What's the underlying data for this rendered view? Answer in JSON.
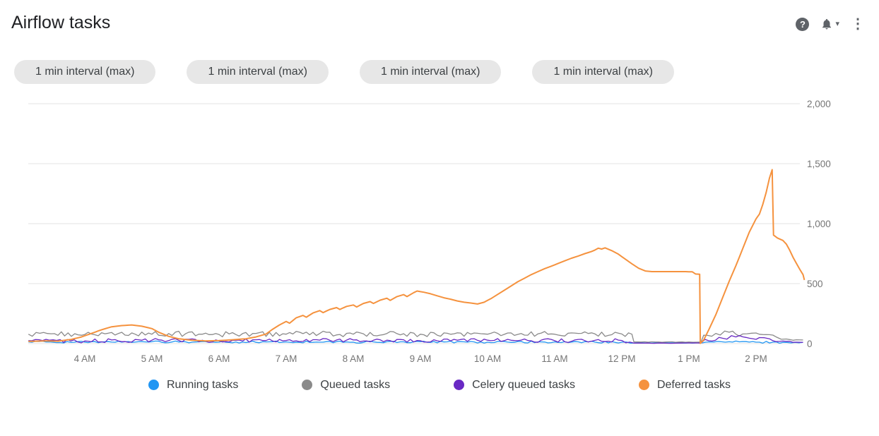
{
  "header": {
    "title": "Airflow tasks",
    "icons": {
      "help_glyph": "?",
      "caret_glyph": "▾",
      "menu_glyph": "⋮"
    }
  },
  "chips": {
    "labels": [
      "1 min interval (max)",
      "1 min interval (max)",
      "1 min interval (max)",
      "1 min interval (max)"
    ]
  },
  "chart_data": {
    "type": "line",
    "title": "Airflow tasks",
    "grid": true,
    "legend_position": "bottom",
    "x_unit": "time of day (decimal hours, 24h clock)",
    "x_range": [
      3.16,
      14.72
    ],
    "y_range": [
      0,
      2000
    ],
    "x_ticks": [
      {
        "label": "4 AM",
        "t": 4
      },
      {
        "label": "5 AM",
        "t": 5
      },
      {
        "label": "6 AM",
        "t": 6
      },
      {
        "label": "7 AM",
        "t": 7
      },
      {
        "label": "8 AM",
        "t": 8
      },
      {
        "label": "9 AM",
        "t": 9
      },
      {
        "label": "10 AM",
        "t": 10
      },
      {
        "label": "11 AM",
        "t": 11
      },
      {
        "label": "12 PM",
        "t": 12
      },
      {
        "label": "1 PM",
        "t": 13
      },
      {
        "label": "2 PM",
        "t": 14
      }
    ],
    "y_ticks": [
      {
        "label": "0",
        "v": 0
      },
      {
        "label": "500",
        "v": 500
      },
      {
        "label": "1,000",
        "v": 1000
      },
      {
        "label": "1,500",
        "v": 1500
      },
      {
        "label": "2,000",
        "v": 2000
      }
    ],
    "series": [
      {
        "name": "Running tasks",
        "color": "#2196f3",
        "width": 1.3,
        "jitter": 8,
        "points": [
          [
            3.16,
            14
          ],
          [
            4,
            12
          ],
          [
            5,
            15
          ],
          [
            6,
            12
          ],
          [
            7,
            14
          ],
          [
            8,
            12
          ],
          [
            9,
            15
          ],
          [
            10,
            12
          ],
          [
            11,
            14
          ],
          [
            12,
            12
          ],
          [
            12.2,
            6,
            2
          ],
          [
            13.2,
            6,
            2
          ],
          [
            13.25,
            12,
            8
          ],
          [
            13.6,
            15
          ],
          [
            14,
            12
          ],
          [
            14.4,
            10
          ],
          [
            14.7,
            10
          ]
        ]
      },
      {
        "name": "Queued tasks",
        "color": "#8a8a8a",
        "width": 1.3,
        "jitter": 22,
        "points": [
          [
            3.16,
            78
          ],
          [
            3.5,
            82
          ],
          [
            4,
            76
          ],
          [
            4.5,
            84
          ],
          [
            5,
            78
          ],
          [
            5.5,
            82
          ],
          [
            6,
            76
          ],
          [
            6.5,
            84
          ],
          [
            7,
            78
          ],
          [
            7.5,
            84
          ],
          [
            8,
            78
          ],
          [
            8.5,
            84
          ],
          [
            9,
            78
          ],
          [
            9.5,
            82
          ],
          [
            10,
            78
          ],
          [
            10.5,
            84
          ],
          [
            11,
            78
          ],
          [
            11.5,
            84
          ],
          [
            12,
            80
          ],
          [
            12.15,
            78
          ],
          [
            12.18,
            14,
            2
          ],
          [
            12.5,
            13,
            2
          ],
          [
            13,
            13,
            2
          ],
          [
            13.18,
            13,
            2
          ],
          [
            13.22,
            70,
            22
          ],
          [
            13.4,
            85
          ],
          [
            13.6,
            95
          ],
          [
            13.8,
            80
          ],
          [
            14,
            88
          ],
          [
            14.15,
            75
          ],
          [
            14.3,
            55,
            12
          ],
          [
            14.45,
            38,
            8
          ],
          [
            14.6,
            32,
            6
          ],
          [
            14.7,
            30
          ]
        ]
      },
      {
        "name": "Celery queued tasks",
        "color": "#6929c4",
        "width": 1.3,
        "jitter": 16,
        "points": [
          [
            3.16,
            25
          ],
          [
            4,
            22
          ],
          [
            5,
            28
          ],
          [
            6,
            22
          ],
          [
            7,
            26
          ],
          [
            8,
            30
          ],
          [
            9,
            24
          ],
          [
            10,
            28
          ],
          [
            11,
            24
          ],
          [
            12,
            26
          ],
          [
            12.18,
            4,
            2
          ],
          [
            13.18,
            4,
            2
          ],
          [
            13.24,
            35,
            20
          ],
          [
            13.5,
            45
          ],
          [
            13.7,
            55
          ],
          [
            13.9,
            45
          ],
          [
            14.05,
            50
          ],
          [
            14.2,
            40
          ],
          [
            14.35,
            18,
            6
          ],
          [
            14.6,
            12,
            4
          ],
          [
            14.7,
            10
          ]
        ]
      },
      {
        "name": "Deferred tasks",
        "color": "#f5923e",
        "width": 2,
        "jitter": 0,
        "points": [
          [
            3.16,
            18
          ],
          [
            3.4,
            22
          ],
          [
            3.6,
            20
          ],
          [
            3.8,
            35
          ],
          [
            3.95,
            55
          ],
          [
            4.1,
            85
          ],
          [
            4.25,
            115
          ],
          [
            4.4,
            140
          ],
          [
            4.55,
            150
          ],
          [
            4.7,
            155
          ],
          [
            4.85,
            145
          ],
          [
            5.0,
            125
          ],
          [
            5.1,
            95
          ],
          [
            5.25,
            60
          ],
          [
            5.4,
            40
          ],
          [
            5.6,
            28
          ],
          [
            5.8,
            22
          ],
          [
            6.0,
            25
          ],
          [
            6.2,
            32
          ],
          [
            6.4,
            40
          ],
          [
            6.55,
            55
          ],
          [
            6.7,
            80
          ],
          [
            6.8,
            120
          ],
          [
            6.9,
            155
          ],
          [
            7.0,
            185
          ],
          [
            7.05,
            170
          ],
          [
            7.15,
            215
          ],
          [
            7.25,
            235
          ],
          [
            7.3,
            220
          ],
          [
            7.4,
            255
          ],
          [
            7.5,
            275
          ],
          [
            7.55,
            258
          ],
          [
            7.65,
            285
          ],
          [
            7.75,
            300
          ],
          [
            7.8,
            285
          ],
          [
            7.9,
            310
          ],
          [
            8.0,
            322
          ],
          [
            8.05,
            305
          ],
          [
            8.15,
            335
          ],
          [
            8.25,
            350
          ],
          [
            8.3,
            335
          ],
          [
            8.4,
            362
          ],
          [
            8.5,
            378
          ],
          [
            8.55,
            360
          ],
          [
            8.65,
            392
          ],
          [
            8.75,
            408
          ],
          [
            8.8,
            392
          ],
          [
            8.9,
            425
          ],
          [
            8.95,
            438
          ],
          [
            9.05,
            428
          ],
          [
            9.15,
            415
          ],
          [
            9.25,
            398
          ],
          [
            9.35,
            382
          ],
          [
            9.45,
            370
          ],
          [
            9.55,
            355
          ],
          [
            9.65,
            345
          ],
          [
            9.75,
            338
          ],
          [
            9.85,
            330
          ],
          [
            9.95,
            345
          ],
          [
            10.05,
            375
          ],
          [
            10.15,
            410
          ],
          [
            10.25,
            445
          ],
          [
            10.35,
            480
          ],
          [
            10.45,
            515
          ],
          [
            10.55,
            545
          ],
          [
            10.65,
            575
          ],
          [
            10.75,
            600
          ],
          [
            10.85,
            625
          ],
          [
            10.95,
            645
          ],
          [
            11.05,
            668
          ],
          [
            11.15,
            690
          ],
          [
            11.25,
            712
          ],
          [
            11.35,
            730
          ],
          [
            11.45,
            750
          ],
          [
            11.55,
            768
          ],
          [
            11.6,
            780
          ],
          [
            11.65,
            795
          ],
          [
            11.7,
            788
          ],
          [
            11.75,
            798
          ],
          [
            11.85,
            775
          ],
          [
            11.95,
            745
          ],
          [
            12.05,
            705
          ],
          [
            12.15,
            665
          ],
          [
            12.25,
            628
          ],
          [
            12.35,
            605
          ],
          [
            12.45,
            600
          ],
          [
            12.7,
            600
          ],
          [
            12.95,
            600
          ],
          [
            13.05,
            598
          ],
          [
            13.1,
            580
          ],
          [
            13.16,
            578
          ],
          [
            13.17,
            2
          ],
          [
            13.22,
            30
          ],
          [
            13.3,
            120
          ],
          [
            13.4,
            240
          ],
          [
            13.5,
            380
          ],
          [
            13.6,
            520
          ],
          [
            13.7,
            650
          ],
          [
            13.8,
            790
          ],
          [
            13.9,
            930
          ],
          [
            14.0,
            1040
          ],
          [
            14.05,
            1080
          ],
          [
            14.1,
            1160
          ],
          [
            14.15,
            1260
          ],
          [
            14.2,
            1380
          ],
          [
            14.24,
            1450
          ],
          [
            14.26,
            905
          ],
          [
            14.32,
            880
          ],
          [
            14.4,
            860
          ],
          [
            14.45,
            830
          ],
          [
            14.5,
            780
          ],
          [
            14.55,
            720
          ],
          [
            14.6,
            670
          ],
          [
            14.65,
            620
          ],
          [
            14.7,
            575
          ],
          [
            14.72,
            530
          ]
        ]
      }
    ]
  }
}
